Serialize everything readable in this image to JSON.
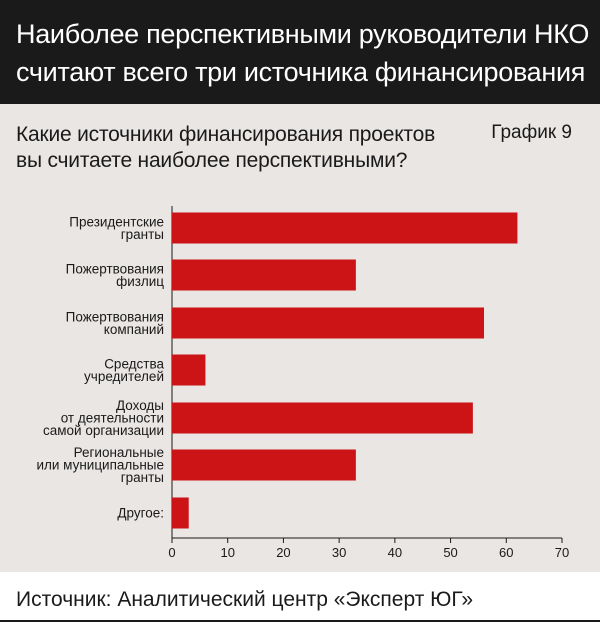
{
  "header": {
    "title_line1": "Наиболее перспективными руководители НКО",
    "title_line2": "считают всего три источника финансирования"
  },
  "question": {
    "line1": "Какие источники финансирования проектов",
    "line2": "вы считаете наиболее перспективными?"
  },
  "chart_number": "График 9",
  "footer": {
    "source": "Источник: Аналитический центр «Эксперт ЮГ»"
  },
  "colors": {
    "bar": "#cc1316",
    "panel": "#e9e6e4",
    "header_bg": "#1a1a1a"
  },
  "chart_data": {
    "type": "bar",
    "orientation": "horizontal",
    "categories": [
      [
        "Президентские",
        "гранты"
      ],
      [
        "Пожертвования",
        "физлиц"
      ],
      [
        "Пожертвования",
        "компаний"
      ],
      [
        "Средства",
        "учредителей"
      ],
      [
        "Доходы",
        "от деятельности",
        "самой организации"
      ],
      [
        "Региональные",
        "или муниципальные",
        "гранты"
      ],
      [
        "Другое:"
      ]
    ],
    "values": [
      62,
      33,
      56,
      6,
      54,
      33,
      3
    ],
    "xlim": [
      0,
      70
    ],
    "xticks": [
      0,
      10,
      20,
      30,
      40,
      50,
      60,
      70
    ],
    "grid": false,
    "legend": false
  }
}
